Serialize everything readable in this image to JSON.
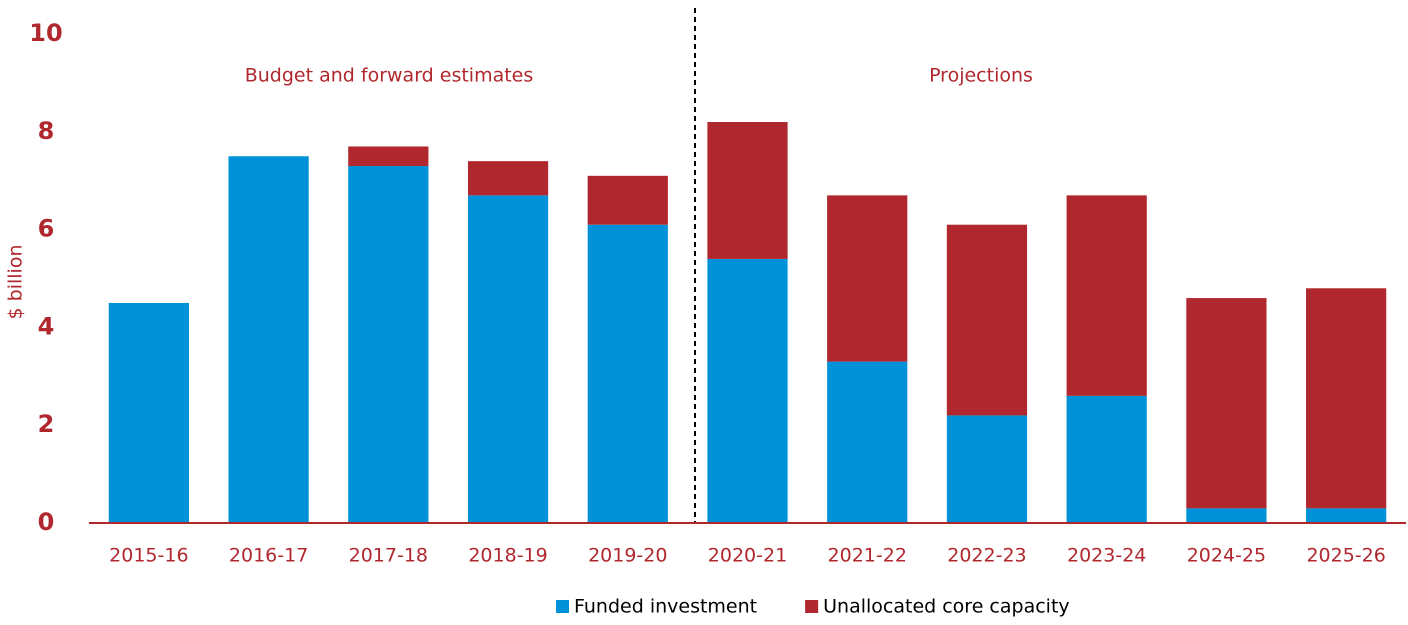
{
  "chart_data": {
    "type": "stacked_bar",
    "y_label": "$ billion",
    "annotations": [
      "Budget and forward estimates",
      "Projections"
    ],
    "categories": [
      "2015-16",
      "2016-17",
      "2017-18",
      "2018-19",
      "2019-20",
      "2020-21",
      "2021-22",
      "2022-23",
      "2023-24",
      "2024-25",
      "2025-26"
    ],
    "series": [
      {
        "name": "Funded investment",
        "color": "#0092d8",
        "values": [
          4.5,
          7.5,
          7.3,
          6.7,
          6.1,
          5.4,
          3.3,
          2.2,
          2.6,
          0.3,
          0.3
        ]
      },
      {
        "name": "Unallocated core capacity",
        "color": "#b0282e",
        "values": [
          0,
          0,
          0.4,
          0.7,
          1.0,
          2.8,
          3.4,
          3.9,
          4.1,
          4.3,
          4.5
        ]
      }
    ],
    "ylim": [
      0,
      10
    ],
    "yticks": [
      0,
      2,
      4,
      6,
      8,
      10
    ],
    "grid": false
  }
}
